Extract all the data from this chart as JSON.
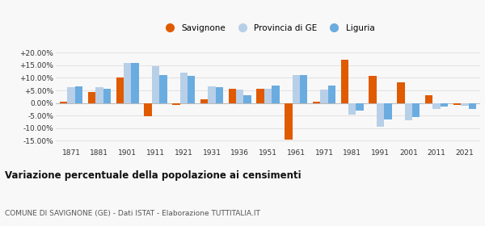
{
  "years": [
    1871,
    1881,
    1901,
    1911,
    1921,
    1931,
    1936,
    1951,
    1961,
    1971,
    1981,
    1991,
    2001,
    2011,
    2021
  ],
  "savignone": [
    0.5,
    4.5,
    10.3,
    -5.3,
    -0.8,
    1.5,
    5.5,
    5.5,
    -14.5,
    0.5,
    17.2,
    10.8,
    8.3,
    3.2,
    -0.8
  ],
  "provincia_ge": [
    6.2,
    6.3,
    16.0,
    14.8,
    12.0,
    6.5,
    5.3,
    5.5,
    11.0,
    5.2,
    -4.5,
    -9.5,
    -6.8,
    -2.5,
    -1.2
  ],
  "liguria": [
    6.5,
    5.8,
    16.0,
    11.0,
    10.8,
    6.3,
    3.1,
    6.8,
    11.0,
    6.8,
    -3.0,
    -6.5,
    -5.5,
    -1.5,
    -2.5
  ],
  "color_savignone": "#e05a00",
  "color_provincia": "#b8cfe8",
  "color_liguria": "#6aace0",
  "title": "Variazione percentuale della popolazione ai censimenti",
  "subtitle": "COMUNE DI SAVIGNONE (GE) - Dati ISTAT - Elaborazione TUTTITALIA.IT",
  "ytick_values": [
    -15.0,
    -10.0,
    -5.0,
    0.0,
    5.0,
    10.0,
    15.0,
    20.0
  ],
  "ylim": [
    -17.5,
    23
  ],
  "background_color": "#f8f8f8"
}
